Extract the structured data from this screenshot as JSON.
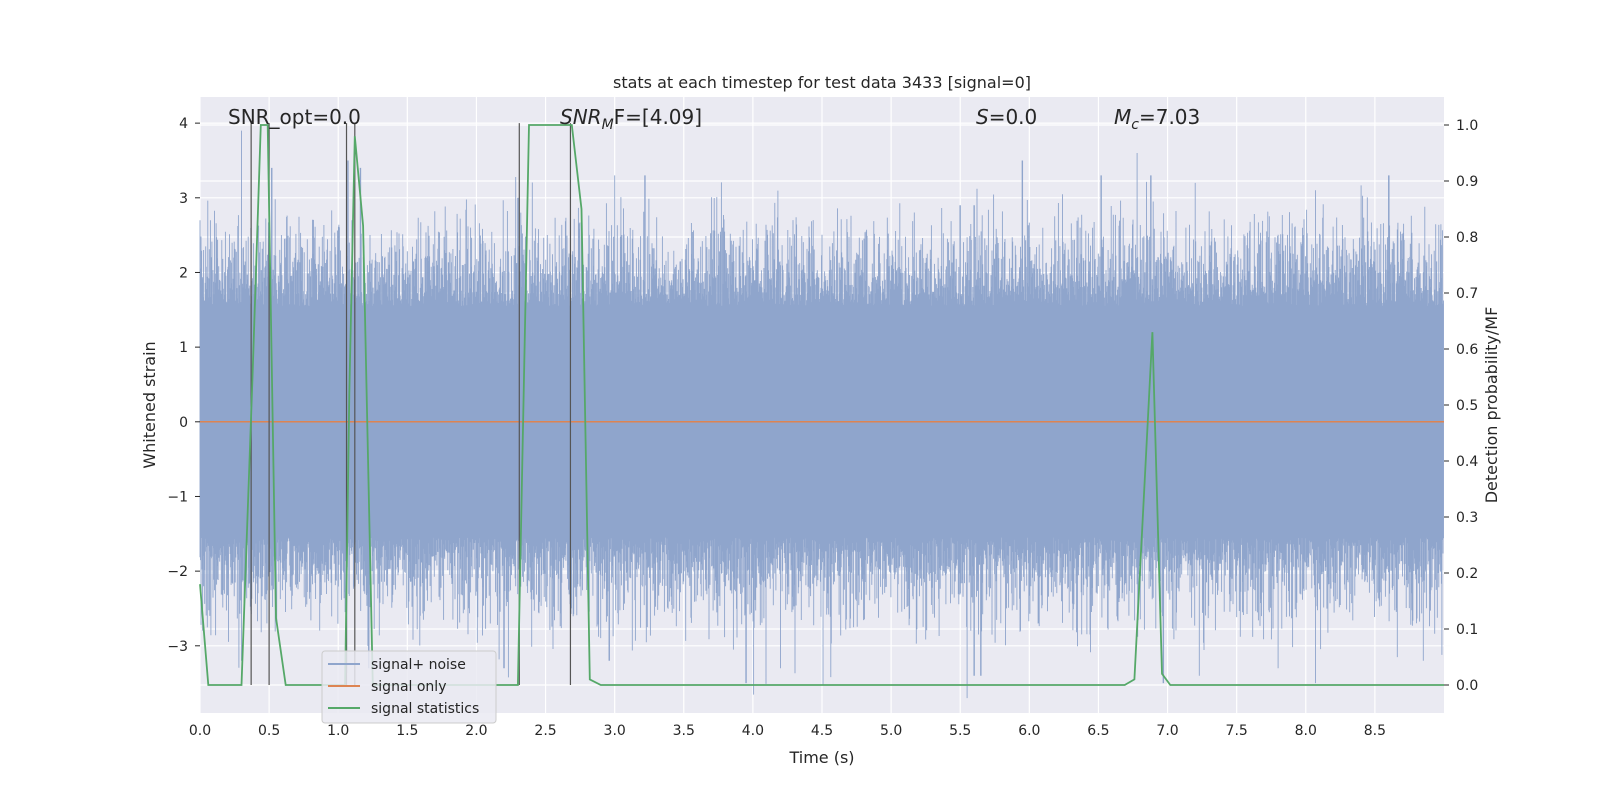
{
  "chart_data": {
    "type": "line",
    "title": "stats at each timestep for test data 3433 [signal=0]",
    "xlabel": "Time (s)",
    "ylabel": "Whitened strain",
    "y2label": "Detection probability/MF",
    "xlim": [
      0.0,
      9.0
    ],
    "ylim": [
      -3.9,
      4.35
    ],
    "y2lim": [
      -0.05,
      1.05
    ],
    "grid": true,
    "legend_position": "lower-left",
    "x_ticks": [
      "0.0",
      "0.5",
      "1.0",
      "1.5",
      "2.0",
      "2.5",
      "3.0",
      "3.5",
      "4.0",
      "4.5",
      "5.0",
      "5.5",
      "6.0",
      "6.5",
      "7.0",
      "7.5",
      "8.0",
      "8.5"
    ],
    "y_ticks": [
      "4",
      "3",
      "2",
      "1",
      "0",
      "−1",
      "−2",
      "−3"
    ],
    "y2_ticks": [
      "1.0",
      "0.9",
      "0.8",
      "0.7",
      "0.6",
      "0.5",
      "0.4",
      "0.3",
      "0.2",
      "0.1",
      "0.0"
    ],
    "annotations": {
      "snr_opt": "SNR_opt=0.0",
      "snr_mf_main": "SNR",
      "snr_mf_sub": "M",
      "snr_mf_rest": "F=[4.09]",
      "s_sym": "S",
      "s_rest": "=0.0",
      "mc_sym": "M",
      "mc_sub": "c",
      "mc_rest": "=7.03"
    },
    "series": [
      {
        "name": "signal+ noise",
        "color": "#8fa5cc",
        "style": "dense noise, approx. zero mean, range about -3.6 to 4.0",
        "peaks_x": [
          0.0,
          0.3,
          0.52,
          1.07,
          1.1,
          1.16,
          2.3,
          3.0,
          3.22,
          5.5,
          5.6,
          5.95,
          6.52,
          6.78,
          6.88,
          7.2,
          8.07,
          8.6
        ],
        "peaks_y": [
          2.7,
          3.9,
          3.4,
          3.5,
          2.7,
          3.4,
          3.0,
          3.3,
          3.3,
          2.9,
          2.9,
          3.5,
          3.3,
          3.6,
          3.3,
          3.2,
          3.1,
          3.3
        ],
        "troughs_x": [
          0.3,
          1.22,
          2.2,
          2.96,
          3.95,
          4.2,
          5.55,
          5.6,
          5.65,
          6.97,
          7.23,
          7.8,
          8.07,
          8.85
        ],
        "troughs_y": [
          -3.2,
          -3.3,
          -3.3,
          -3.2,
          -3.5,
          -3.3,
          -3.7,
          -3.4,
          -3.4,
          -3.5,
          -3.4,
          -3.3,
          -3.5,
          -3.2
        ]
      },
      {
        "name": "signal only",
        "color": "#dd8452",
        "x": [
          0.0,
          9.0
        ],
        "y": [
          0.0,
          0.0
        ]
      },
      {
        "name": "signal statistics",
        "color": "#55a868",
        "axis": "right",
        "x": [
          0.0,
          0.06,
          0.1,
          0.3,
          0.38,
          0.44,
          0.49,
          0.55,
          0.62,
          0.7,
          0.86,
          1.05,
          1.08,
          1.12,
          1.18,
          1.25,
          1.6,
          2.0,
          2.3,
          2.38,
          2.45,
          2.6,
          2.69,
          2.76,
          2.82,
          2.9,
          3.2,
          4.0,
          5.0,
          6.0,
          6.69,
          6.76,
          6.89,
          6.96,
          7.02,
          7.5,
          8.0,
          9.0
        ],
        "y": [
          0.18,
          0.0,
          0.0,
          0.0,
          0.55,
          1.0,
          1.0,
          0.12,
          0.0,
          0.0,
          0.0,
          0.0,
          0.52,
          0.98,
          0.82,
          0.0,
          0.0,
          0.0,
          0.0,
          1.0,
          1.0,
          1.0,
          1.0,
          0.85,
          0.01,
          0.0,
          0.0,
          0.0,
          0.0,
          0.0,
          0.0,
          0.01,
          0.63,
          0.02,
          0.0,
          0.0,
          0.0,
          0.0
        ]
      }
    ],
    "vertical_lines_x": [
      0.37,
      0.5,
      1.06,
      1.12,
      2.31,
      2.68
    ]
  }
}
